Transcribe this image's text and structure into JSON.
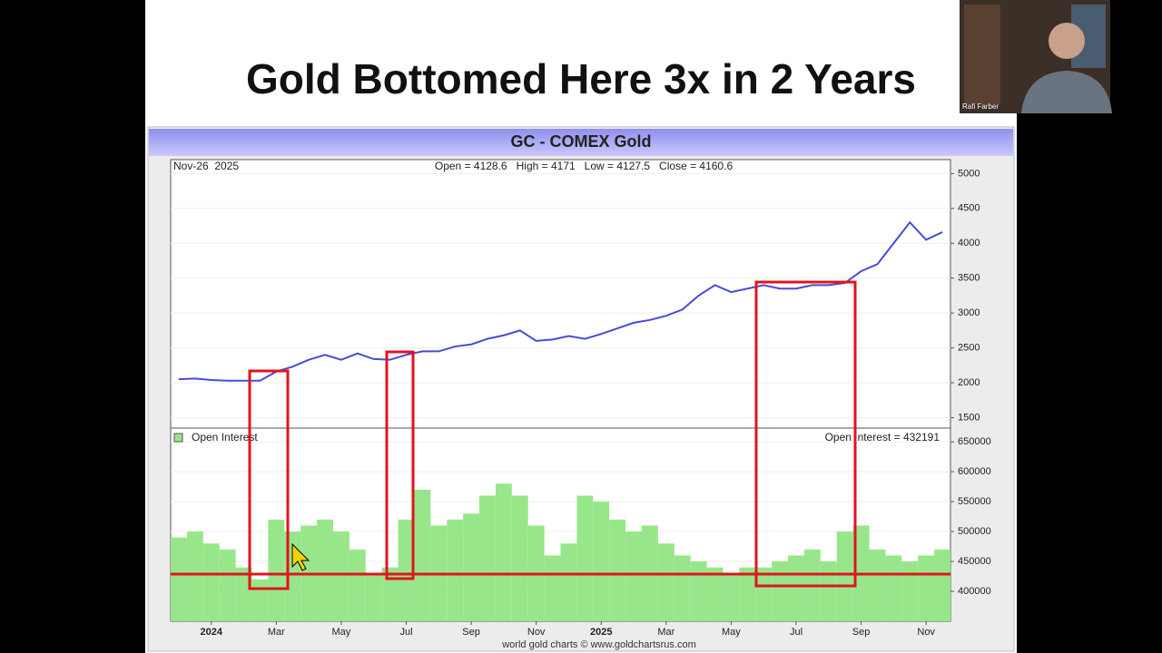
{
  "slide": {
    "title": "Gold Bottomed Here 3x in 2 Years",
    "presenter": "Rafi Farber"
  },
  "chart_data": [
    {
      "type": "line",
      "title": "GC - COMEX Gold",
      "subtitle": "Nov-26  2025",
      "annotation": "Open = 4128.6   High = 4171   Low = 4127.5   Close = 4160.6",
      "categories": [
        null,
        null,
        "2024",
        null,
        null,
        null,
        "Mar",
        null,
        null,
        null,
        "May",
        null,
        null,
        null,
        "Jul",
        null,
        null,
        null,
        "Sep",
        null,
        null,
        null,
        "Nov",
        null,
        null,
        null,
        "2025",
        null,
        null,
        null,
        "Mar",
        null,
        null,
        null,
        "May",
        null,
        null,
        null,
        "Jul",
        null,
        null,
        null,
        "Sep",
        null,
        null,
        null,
        "Nov",
        null
      ],
      "values": [
        2050,
        2060,
        2040,
        2030,
        2030,
        2030,
        2160,
        2230,
        2330,
        2400,
        2330,
        2420,
        2340,
        2330,
        2400,
        2450,
        2450,
        2520,
        2550,
        2630,
        2680,
        2750,
        2600,
        2620,
        2670,
        2630,
        2700,
        2780,
        2860,
        2900,
        2960,
        3050,
        3250,
        3400,
        3300,
        3350,
        3400,
        3350,
        3350,
        3400,
        3400,
        3430,
        3600,
        3700,
        4000,
        4300,
        4050,
        4160
      ],
      "color": "#4a4ad8",
      "ylim": [
        1350,
        5200
      ],
      "yticks": [
        1500,
        2000,
        2500,
        3000,
        3500,
        4000,
        4500,
        5000
      ]
    },
    {
      "type": "bar",
      "annotation": "Open Interest = 432191",
      "series": [
        {
          "name": "Open Interest",
          "color": "#98e68a",
          "values": [
            490000,
            500000,
            480000,
            470000,
            440000,
            420000,
            520000,
            500000,
            510000,
            520000,
            500000,
            470000,
            430000,
            440000,
            520000,
            570000,
            510000,
            520000,
            530000,
            560000,
            580000,
            560000,
            510000,
            460000,
            480000,
            560000,
            550000,
            520000,
            500000,
            510000,
            480000,
            460000,
            450000,
            440000,
            430000,
            440000,
            440000,
            450000,
            460000,
            470000,
            450000,
            500000,
            510000,
            470000,
            460000,
            450000,
            460000,
            470000
          ]
        }
      ],
      "ylim": [
        350000,
        673000
      ],
      "yticks": [
        400000,
        450000,
        500000,
        550000,
        600000,
        650000
      ],
      "source": "world gold charts © www.goldchartsrus.com"
    }
  ]
}
